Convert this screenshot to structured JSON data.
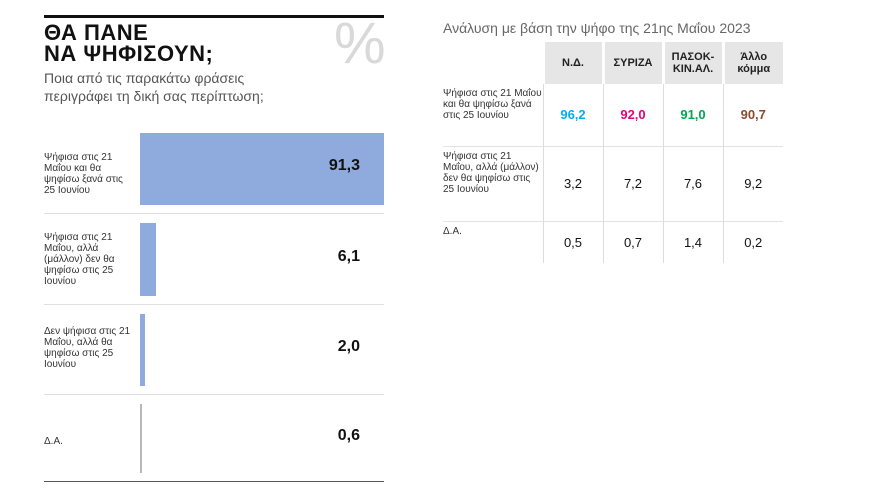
{
  "title": {
    "line1": "ΘΑ ΠΑΝΕ",
    "line2": "ΝΑ ΨΗΦΙΣΟΥΝ;"
  },
  "percent_symbol": "%",
  "subtitle": "Ποια από τις παρακάτω φράσεις περιγράφει τη δική σας περίπτωση;",
  "bar_color": "#8faadc",
  "chart_data": {
    "type": "bar",
    "orientation": "horizontal",
    "categories": [
      "Ψήφισα στις 21 Μαΐου και θα ψηφίσω ξανά στις 25 Ιουνίου",
      "Ψήφισα στις 21 Μαΐου, αλλά (μάλλον) δεν θα ψηφίσω στις 25 Ιουνίου",
      "Δεν ψήφισα στις 21 Μαΐου, αλλά θα ψηφίσω στις 25 Ιουνίου",
      "Δ.Α."
    ],
    "values": [
      91.3,
      6.1,
      2.0,
      0.6
    ],
    "value_labels": [
      "91,3",
      "6,1",
      "2,0",
      "0,6"
    ],
    "xlim": [
      0,
      100
    ],
    "title": "ΘΑ ΠΑΝΕ ΝΑ ΨΗΦΙΣΟΥΝ;"
  },
  "table": {
    "caption": "Ανάλυση με βάση την ψήφο της 21ης Μαΐου 2023",
    "headers": [
      "Ν.Δ.",
      "ΣΥΡΙΖΑ",
      "ΠΑΣΟΚ-ΚΙΝ.ΑΛ.",
      "Άλλο κόμμα"
    ],
    "header_colors": [
      "#00aeef",
      "#e6007e",
      "#00a651",
      "#8b4a2b"
    ],
    "rows": [
      {
        "label": "Ψήφισα στις 21 Μαΐου και θα ψηφίσω ξανά στις 25 Ιουνίου",
        "values": [
          "96,2",
          "92,0",
          "91,0",
          "90,7"
        ],
        "highlight": true
      },
      {
        "label": "Ψήφισα στις 21 Μαΐου, αλλά (μάλλον) δεν θα ψηφίσω στις 25 Ιουνίου",
        "values": [
          "3,2",
          "7,2",
          "7,6",
          "9,2"
        ],
        "highlight": false
      },
      {
        "label": "Δ.Α.",
        "values": [
          "0,5",
          "0,7",
          "1,4",
          "0,2"
        ],
        "highlight": false
      }
    ]
  }
}
